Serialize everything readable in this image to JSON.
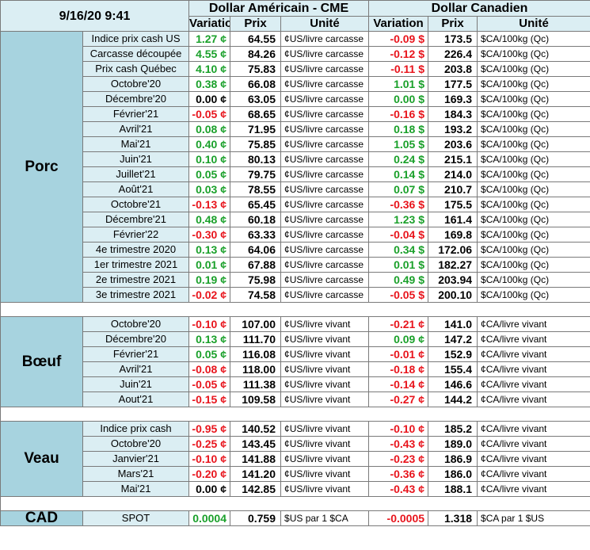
{
  "header": {
    "datetime": "9/16/20 9:41",
    "usd_title": "Dollar Américain - CME",
    "cad_title": "Dollar Canadien",
    "col_variation": "Variation",
    "col_prix": "Prix",
    "col_unite": "Unité"
  },
  "colors": {
    "positive": "#1aa02a",
    "negative": "#e8141c",
    "neutral": "#000000",
    "category_bg": "#a7d3df",
    "label_bg": "#dbeef3"
  },
  "sections": [
    {
      "name": "Porc",
      "rows": [
        {
          "label": "Indice prix cash US",
          "usd_var": "1.27 ¢",
          "usd_sign": "pos",
          "usd_prix": "64.55",
          "usd_unit": "¢US/livre carcasse",
          "cad_var": "-0.09 $",
          "cad_sign": "neg",
          "cad_prix": "173.5",
          "cad_unit": "$CA/100kg (Qc)"
        },
        {
          "label": "Carcasse découpée",
          "usd_var": "4.55 ¢",
          "usd_sign": "pos",
          "usd_prix": "84.26",
          "usd_unit": "¢US/livre carcasse",
          "cad_var": "-0.12 $",
          "cad_sign": "neg",
          "cad_prix": "226.4",
          "cad_unit": "$CA/100kg (Qc)"
        },
        {
          "label": "Prix cash Québec",
          "usd_var": "4.10 ¢",
          "usd_sign": "pos",
          "usd_prix": "75.83",
          "usd_unit": "¢US/livre carcasse",
          "cad_var": "-0.11 $",
          "cad_sign": "neg",
          "cad_prix": "203.8",
          "cad_unit": "$CA/100kg (Qc)"
        },
        {
          "label": "Octobre'20",
          "usd_var": "0.38 ¢",
          "usd_sign": "pos",
          "usd_prix": "66.08",
          "usd_unit": "¢US/livre carcasse",
          "cad_var": "1.01 $",
          "cad_sign": "pos",
          "cad_prix": "177.5",
          "cad_unit": "$CA/100kg (Qc)"
        },
        {
          "label": "Décembre'20",
          "usd_var": "0.00 ¢",
          "usd_sign": "neu",
          "usd_prix": "63.05",
          "usd_unit": "¢US/livre carcasse",
          "cad_var": "0.00 $",
          "cad_sign": "pos",
          "cad_prix": "169.3",
          "cad_unit": "$CA/100kg (Qc)"
        },
        {
          "label": "Février'21",
          "usd_var": "-0.05 ¢",
          "usd_sign": "neg",
          "usd_prix": "68.65",
          "usd_unit": "¢US/livre carcasse",
          "cad_var": "-0.16 $",
          "cad_sign": "neg",
          "cad_prix": "184.3",
          "cad_unit": "$CA/100kg (Qc)"
        },
        {
          "label": "Avril'21",
          "usd_var": "0.08 ¢",
          "usd_sign": "pos",
          "usd_prix": "71.95",
          "usd_unit": "¢US/livre carcasse",
          "cad_var": "0.18 $",
          "cad_sign": "pos",
          "cad_prix": "193.2",
          "cad_unit": "$CA/100kg (Qc)"
        },
        {
          "label": "Mai'21",
          "usd_var": "0.40 ¢",
          "usd_sign": "pos",
          "usd_prix": "75.85",
          "usd_unit": "¢US/livre carcasse",
          "cad_var": "1.05 $",
          "cad_sign": "pos",
          "cad_prix": "203.6",
          "cad_unit": "$CA/100kg (Qc)"
        },
        {
          "label": "Juin'21",
          "usd_var": "0.10 ¢",
          "usd_sign": "pos",
          "usd_prix": "80.13",
          "usd_unit": "¢US/livre carcasse",
          "cad_var": "0.24 $",
          "cad_sign": "pos",
          "cad_prix": "215.1",
          "cad_unit": "$CA/100kg (Qc)"
        },
        {
          "label": "Juillet'21",
          "usd_var": "0.05 ¢",
          "usd_sign": "pos",
          "usd_prix": "79.75",
          "usd_unit": "¢US/livre carcasse",
          "cad_var": "0.14 $",
          "cad_sign": "pos",
          "cad_prix": "214.0",
          "cad_unit": "$CA/100kg (Qc)"
        },
        {
          "label": "Août'21",
          "usd_var": "0.03 ¢",
          "usd_sign": "pos",
          "usd_prix": "78.55",
          "usd_unit": "¢US/livre carcasse",
          "cad_var": "0.07 $",
          "cad_sign": "pos",
          "cad_prix": "210.7",
          "cad_unit": "$CA/100kg (Qc)"
        },
        {
          "label": "Octobre'21",
          "usd_var": "-0.13 ¢",
          "usd_sign": "neg",
          "usd_prix": "65.45",
          "usd_unit": "¢US/livre carcasse",
          "cad_var": "-0.36 $",
          "cad_sign": "neg",
          "cad_prix": "175.5",
          "cad_unit": "$CA/100kg (Qc)"
        },
        {
          "label": "Décembre'21",
          "usd_var": "0.48 ¢",
          "usd_sign": "pos",
          "usd_prix": "60.18",
          "usd_unit": "¢US/livre carcasse",
          "cad_var": "1.23 $",
          "cad_sign": "pos",
          "cad_prix": "161.4",
          "cad_unit": "$CA/100kg (Qc)"
        },
        {
          "label": "Février'22",
          "usd_var": "-0.30 ¢",
          "usd_sign": "neg",
          "usd_prix": "63.33",
          "usd_unit": "¢US/livre carcasse",
          "cad_var": "-0.04 $",
          "cad_sign": "neg",
          "cad_prix": "169.8",
          "cad_unit": "$CA/100kg (Qc)"
        },
        {
          "label": "4e trimestre 2020",
          "usd_var": "0.13 ¢",
          "usd_sign": "pos",
          "usd_prix": "64.06",
          "usd_unit": "¢US/livre carcasse",
          "cad_var": "0.34 $",
          "cad_sign": "pos",
          "cad_prix": "172.06",
          "cad_unit": "$CA/100kg (Qc)"
        },
        {
          "label": "1er trimestre 2021",
          "usd_var": "0.01 ¢",
          "usd_sign": "pos",
          "usd_prix": "67.88",
          "usd_unit": "¢US/livre carcasse",
          "cad_var": "0.01 $",
          "cad_sign": "pos",
          "cad_prix": "182.27",
          "cad_unit": "$CA/100kg (Qc)"
        },
        {
          "label": "2e trimestre 2021",
          "usd_var": "0.19 ¢",
          "usd_sign": "pos",
          "usd_prix": "75.98",
          "usd_unit": "¢US/livre carcasse",
          "cad_var": "0.49 $",
          "cad_sign": "pos",
          "cad_prix": "203.94",
          "cad_unit": "$CA/100kg (Qc)"
        },
        {
          "label": "3e trimestre 2021",
          "usd_var": "-0.02 ¢",
          "usd_sign": "neg",
          "usd_prix": "74.58",
          "usd_unit": "¢US/livre carcasse",
          "cad_var": "-0.05 $",
          "cad_sign": "neg",
          "cad_prix": "200.10",
          "cad_unit": "$CA/100kg (Qc)"
        }
      ]
    },
    {
      "name": "Bœuf",
      "rows": [
        {
          "label": "Octobre'20",
          "usd_var": "-0.10 ¢",
          "usd_sign": "neg",
          "usd_prix": "107.00",
          "usd_unit": "¢US/livre vivant",
          "cad_var": "-0.21 ¢",
          "cad_sign": "neg",
          "cad_prix": "141.0",
          "cad_unit": "¢CA/livre vivant"
        },
        {
          "label": "Décembre'20",
          "usd_var": "0.13 ¢",
          "usd_sign": "pos",
          "usd_prix": "111.70",
          "usd_unit": "¢US/livre vivant",
          "cad_var": "0.09 ¢",
          "cad_sign": "pos",
          "cad_prix": "147.2",
          "cad_unit": "¢CA/livre vivant"
        },
        {
          "label": "Février'21",
          "usd_var": "0.05 ¢",
          "usd_sign": "pos",
          "usd_prix": "116.08",
          "usd_unit": "¢US/livre vivant",
          "cad_var": "-0.01 ¢",
          "cad_sign": "neg",
          "cad_prix": "152.9",
          "cad_unit": "¢CA/livre vivant"
        },
        {
          "label": "Avril'21",
          "usd_var": "-0.08 ¢",
          "usd_sign": "neg",
          "usd_prix": "118.00",
          "usd_unit": "¢US/livre vivant",
          "cad_var": "-0.18 ¢",
          "cad_sign": "neg",
          "cad_prix": "155.4",
          "cad_unit": "¢CA/livre vivant"
        },
        {
          "label": "Juin'21",
          "usd_var": "-0.05 ¢",
          "usd_sign": "neg",
          "usd_prix": "111.38",
          "usd_unit": "¢US/livre vivant",
          "cad_var": "-0.14 ¢",
          "cad_sign": "neg",
          "cad_prix": "146.6",
          "cad_unit": "¢CA/livre vivant"
        },
        {
          "label": "Aout'21",
          "usd_var": "-0.15 ¢",
          "usd_sign": "neg",
          "usd_prix": "109.58",
          "usd_unit": "¢US/livre vivant",
          "cad_var": "-0.27 ¢",
          "cad_sign": "neg",
          "cad_prix": "144.2",
          "cad_unit": "¢CA/livre vivant"
        }
      ]
    },
    {
      "name": "Veau",
      "rows": [
        {
          "label": "Indice prix cash",
          "usd_var": "-0.95 ¢",
          "usd_sign": "neg",
          "usd_prix": "140.52",
          "usd_unit": "¢US/livre vivant",
          "cad_var": "-0.10 ¢",
          "cad_sign": "neg",
          "cad_prix": "185.2",
          "cad_unit": "¢CA/livre vivant"
        },
        {
          "label": "Octobre'20",
          "usd_var": "-0.25 ¢",
          "usd_sign": "neg",
          "usd_prix": "143.45",
          "usd_unit": "¢US/livre vivant",
          "cad_var": "-0.43 ¢",
          "cad_sign": "neg",
          "cad_prix": "189.0",
          "cad_unit": "¢CA/livre vivant"
        },
        {
          "label": "Janvier'21",
          "usd_var": "-0.10 ¢",
          "usd_sign": "neg",
          "usd_prix": "141.88",
          "usd_unit": "¢US/livre vivant",
          "cad_var": "-0.23 ¢",
          "cad_sign": "neg",
          "cad_prix": "186.9",
          "cad_unit": "¢CA/livre vivant"
        },
        {
          "label": "Mars'21",
          "usd_var": "-0.20 ¢",
          "usd_sign": "neg",
          "usd_prix": "141.20",
          "usd_unit": "¢US/livre vivant",
          "cad_var": "-0.36 ¢",
          "cad_sign": "neg",
          "cad_prix": "186.0",
          "cad_unit": "¢CA/livre vivant"
        },
        {
          "label": "Mai'21",
          "usd_var": "0.00 ¢",
          "usd_sign": "neu",
          "usd_prix": "142.85",
          "usd_unit": "¢US/livre vivant",
          "cad_var": "-0.43 ¢",
          "cad_sign": "neg",
          "cad_prix": "188.1",
          "cad_unit": "¢CA/livre vivant"
        }
      ]
    },
    {
      "name": "CAD",
      "rows": [
        {
          "label": "SPOT",
          "usd_var": "0.0004",
          "usd_sign": "pos",
          "usd_prix": "0.759",
          "usd_unit": "$US par 1 $CA",
          "cad_var": "-0.0005",
          "cad_sign": "neg",
          "cad_prix": "1.318",
          "cad_unit": "$CA par 1 $US"
        }
      ]
    }
  ]
}
